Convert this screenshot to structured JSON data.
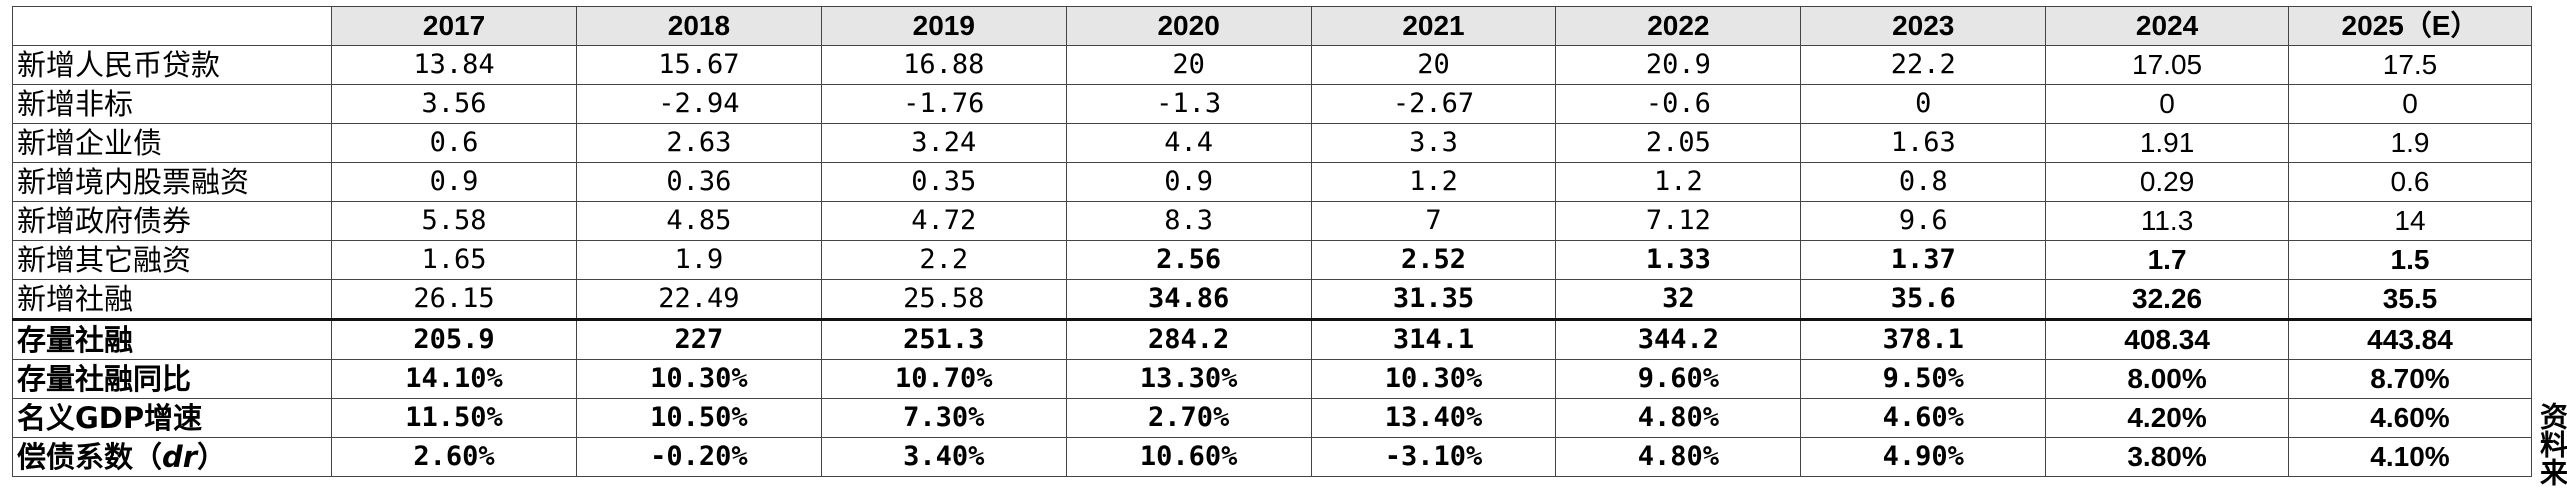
{
  "header": {
    "corner": "",
    "years": [
      "2017",
      "2018",
      "2019",
      "2020",
      "2021",
      "2022",
      "2023",
      "2024",
      "2025（E）"
    ]
  },
  "rows": [
    {
      "label": "新增人民币贷款",
      "values": [
        "13.84",
        "15.67",
        "16.88",
        "20",
        "20",
        "20.9",
        "22.2",
        "17.05",
        "17.5"
      ]
    },
    {
      "label": "新增非标",
      "values": [
        "3.56",
        "-2.94",
        "-1.76",
        "-1.3",
        "-2.67",
        "-0.6",
        "0",
        "0",
        "0"
      ]
    },
    {
      "label": "新增企业债",
      "values": [
        "0.6",
        "2.63",
        "3.24",
        "4.4",
        "3.3",
        "2.05",
        "1.63",
        "1.91",
        "1.9"
      ]
    },
    {
      "label": "新增境内股票融资",
      "values": [
        "0.9",
        "0.36",
        "0.35",
        "0.9",
        "1.2",
        "1.2",
        "0.8",
        "0.29",
        "0.6"
      ]
    },
    {
      "label": "新增政府债券",
      "values": [
        "5.58",
        "4.85",
        "4.72",
        "8.3",
        "7",
        "7.12",
        "9.6",
        "11.3",
        "14"
      ]
    },
    {
      "label": "新增其它融资",
      "values": [
        "1.65",
        "1.9",
        "2.2",
        "2.56",
        "2.52",
        "1.33",
        "1.37",
        "1.7",
        "1.5"
      ]
    },
    {
      "label": "新增社融",
      "values": [
        "26.15",
        "22.49",
        "25.58",
        "34.86",
        "31.35",
        "32",
        "35.6",
        "32.26",
        "35.5"
      ]
    },
    {
      "label": "存量社融",
      "values": [
        "205.9",
        "227",
        "251.3",
        "284.2",
        "314.1",
        "344.2",
        "378.1",
        "408.34",
        "443.84"
      ]
    },
    {
      "label": "存量社融同比",
      "values": [
        "14.10%",
        "10.30%",
        "10.70%",
        "13.30%",
        "10.30%",
        "9.60%",
        "9.50%",
        "8.00%",
        "8.70%"
      ]
    },
    {
      "label": "名义GDP增速",
      "values": [
        "11.50%",
        "10.50%",
        "7.30%",
        "2.70%",
        "13.40%",
        "4.80%",
        "4.60%",
        "4.20%",
        "4.60%"
      ]
    },
    {
      "label_prefix": "偿债系数（",
      "label_var": "dr",
      "label_suffix": "）",
      "values": [
        "2.60%",
        "-0.20%",
        "3.40%",
        "10.60%",
        "-3.10%",
        "4.80%",
        "4.90%",
        "3.80%",
        "4.10%"
      ]
    }
  ],
  "side_note": "资料来"
}
